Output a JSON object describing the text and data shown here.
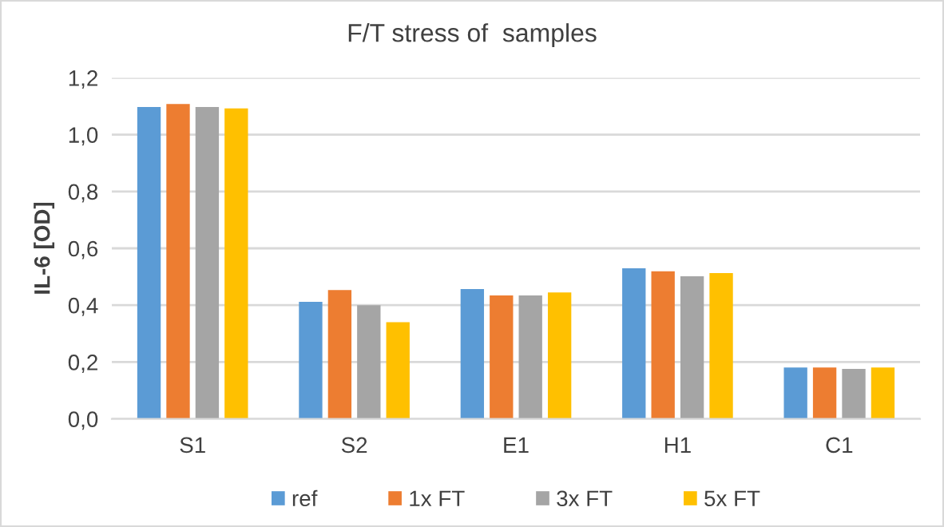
{
  "chart_data": {
    "type": "bar",
    "title": "F/T stress of  samples",
    "ylabel": "IL-6 [OD]",
    "categories": [
      "S1",
      "S2",
      "E1",
      "H1",
      "C1"
    ],
    "series": [
      {
        "name": "ref",
        "color": "#5b9bd5",
        "values": [
          1.097,
          0.412,
          0.457,
          0.53,
          0.181
        ]
      },
      {
        "name": "1x FT",
        "color": "#ed7d31",
        "values": [
          1.108,
          0.453,
          0.434,
          0.519,
          0.181
        ]
      },
      {
        "name": "3x FT",
        "color": "#a5a5a5",
        "values": [
          1.097,
          0.4,
          0.434,
          0.502,
          0.176
        ]
      },
      {
        "name": "5x FT",
        "color": "#ffc000",
        "values": [
          1.092,
          0.34,
          0.445,
          0.513,
          0.181
        ]
      }
    ],
    "ylim": [
      0,
      1.2
    ],
    "yticks": [
      {
        "value": 0,
        "label": "0,0"
      },
      {
        "value": 0.2,
        "label": "0,2"
      },
      {
        "value": 0.4,
        "label": "0,4"
      },
      {
        "value": 0.6,
        "label": "0,6"
      },
      {
        "value": 0.8,
        "label": "0,8"
      },
      {
        "value": 1.0,
        "label": "1,0"
      },
      {
        "value": 1.2,
        "label": "1,2"
      }
    ],
    "grid": "y",
    "legend": "bottom"
  }
}
